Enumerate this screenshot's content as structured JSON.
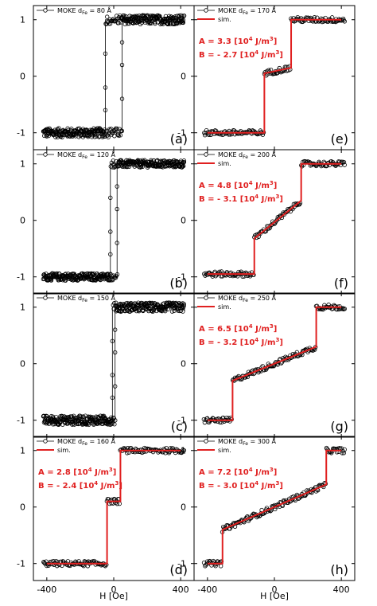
{
  "figure": {
    "x_axis_title": "H [Oe]",
    "x_ticks": [
      "-400",
      "0",
      "400"
    ],
    "y_ticks": [
      "1",
      "0",
      "-1"
    ],
    "colors": {
      "data": "#000000",
      "sim": "#e02020",
      "text_annotation": "#e02020"
    }
  },
  "chart_data": [
    {
      "panel": "(a)",
      "type": "scatter",
      "column": "left",
      "row": 1,
      "legend": [
        "MOKE d",
        "Fe",
        " = 80 Å"
      ],
      "has_sim": false,
      "xlim": [
        -480,
        480
      ],
      "ylim": [
        -1.3,
        1.25
      ],
      "loop_type": "square",
      "coercivity_oe": 50,
      "noise": 0.05
    },
    {
      "panel": "(b)",
      "type": "scatter",
      "column": "left",
      "row": 2,
      "legend": [
        "MOKE d",
        "Fe",
        " = 120 Å"
      ],
      "has_sim": false,
      "xlim": [
        -480,
        480
      ],
      "ylim": [
        -1.3,
        1.25
      ],
      "loop_type": "square",
      "coercivity_oe": 20,
      "noise": 0.04
    },
    {
      "panel": "(c)",
      "type": "scatter",
      "column": "left",
      "row": 3,
      "legend": [
        "MOKE d",
        "Fe",
        " = 150 Å"
      ],
      "has_sim": false,
      "xlim": [
        -480,
        480
      ],
      "ylim": [
        -1.3,
        1.25
      ],
      "loop_type": "square",
      "coercivity_oe": 8,
      "noise": 0.05
    },
    {
      "panel": "(d)",
      "type": "line",
      "column": "left",
      "row": 4,
      "legend": [
        "MOKE d",
        "Fe",
        " = 160 Å"
      ],
      "has_sim": true,
      "sim_label": "sim.",
      "A_text": "A = 2.8 [10",
      "A_sup": "4",
      "A_unit": " J/m",
      "A_unit_sup": "3",
      "A_end": "]",
      "B_text": "B = - 2.4 [10",
      "B_sup": "4",
      "B_unit": " J/m",
      "B_unit_sup": "3",
      "B_end": "]",
      "xlim": [
        -480,
        480
      ],
      "ylim": [
        -1.3,
        1.25
      ],
      "steps_oe": [
        [
          -40,
          -1,
          0.1
        ],
        [
          40,
          0.1,
          1
        ]
      ],
      "slope_mid": 0,
      "noise": 0.03
    },
    {
      "panel": "(e)",
      "type": "line",
      "column": "right",
      "row": 1,
      "legend": [
        "MOKE d",
        "Fe",
        " = 170 Å"
      ],
      "has_sim": true,
      "sim_label": "sim.",
      "A_text": "A = 3.3 [10",
      "A_sup": "4",
      "A_unit": " J/m",
      "A_unit_sup": "3",
      "A_end": "]",
      "B_text": "B = - 2.7 [10",
      "B_sup": "4",
      "B_unit": " J/m",
      "B_unit_sup": "3",
      "B_end": "]",
      "xlim": [
        -480,
        480
      ],
      "ylim": [
        -1.3,
        1.25
      ],
      "steps_oe": [
        [
          -60,
          -1,
          0.05
        ],
        [
          100,
          0.15,
          1
        ]
      ],
      "slope_mid": 0.0006,
      "noise": 0.03
    },
    {
      "panel": "(f)",
      "type": "line",
      "column": "right",
      "row": 2,
      "legend": [
        "MOKE d",
        "Fe",
        " = 200 Å"
      ],
      "has_sim": true,
      "sim_label": "sim.",
      "A_text": "A = 4.8 [10",
      "A_sup": "4",
      "A_unit": " J/m",
      "A_unit_sup": "3",
      "A_end": "]",
      "B_text": "B = - 3.1 [10",
      "B_sup": "4",
      "B_unit": " J/m",
      "B_unit_sup": "3",
      "B_end": "]",
      "xlim": [
        -480,
        480
      ],
      "ylim": [
        -1.3,
        1.25
      ],
      "steps_oe": [
        [
          -120,
          -0.95,
          -0.32
        ],
        [
          160,
          0.35,
          1
        ]
      ],
      "slope_mid": 0.0024,
      "noise": 0.03
    },
    {
      "panel": "(g)",
      "type": "line",
      "column": "right",
      "row": 3,
      "legend": [
        "MOKE d",
        "Fe",
        " = 250 Å"
      ],
      "has_sim": true,
      "sim_label": "sim.",
      "A_text": "A = 6.5 [10",
      "A_sup": "4",
      "A_unit": " J/m",
      "A_unit_sup": "3",
      "A_end": "]",
      "B_text": "B = - 3.2 [10",
      "B_sup": "4",
      "B_unit": " J/m",
      "B_unit_sup": "3",
      "B_end": "]",
      "xlim": [
        -480,
        480
      ],
      "ylim": [
        -1.3,
        1.25
      ],
      "steps_oe": [
        [
          -250,
          -1,
          -0.3
        ],
        [
          250,
          0.3,
          1
        ]
      ],
      "slope_mid": 0.0012,
      "noise": 0.03
    },
    {
      "panel": "(h)",
      "type": "line",
      "column": "right",
      "row": 4,
      "legend": [
        "MOKE d",
        "Fe",
        " = 300 Å"
      ],
      "has_sim": true,
      "sim_label": "sim.",
      "A_text": "A = 7.2 [10",
      "A_sup": "4",
      "A_unit": " J/m",
      "A_unit_sup": "3",
      "A_end": "]",
      "B_text": "B = - 3.0 [10",
      "B_sup": "4",
      "B_unit": " J/m",
      "B_unit_sup": "3",
      "B_end": "]",
      "xlim": [
        -480,
        480
      ],
      "ylim": [
        -1.3,
        1.25
      ],
      "steps_oe": [
        [
          -310,
          -1,
          -0.4
        ],
        [
          310,
          0.4,
          1
        ]
      ],
      "slope_mid": 0.0013,
      "noise": 0.03
    }
  ]
}
